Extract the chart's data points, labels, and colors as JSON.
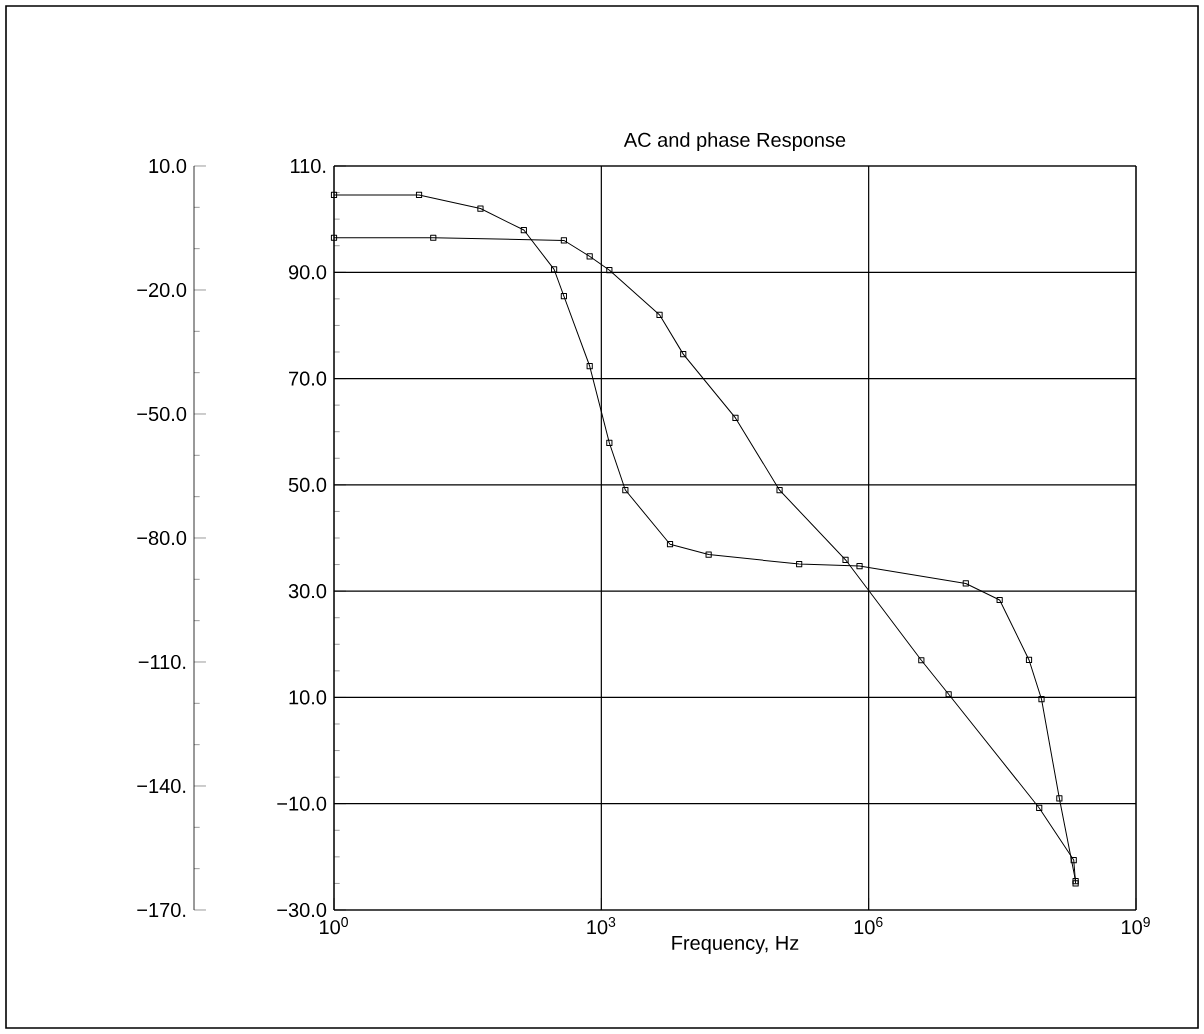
{
  "chart_data": {
    "type": "line",
    "title": "AC and phase Response",
    "xlabel": "Frequency, Hz",
    "log": "x",
    "grid": true,
    "marker": "square",
    "line_style": "solid",
    "xlim": [
      1,
      1000000000
    ],
    "xticks": [
      {
        "value": 1,
        "label": "10$^{0}$"
      },
      {
        "value": 1000,
        "label": "10$^{3}$"
      },
      {
        "value": 1000000,
        "label": "10$^{6}$"
      },
      {
        "value": 1000000000,
        "label": "10$^{9}$"
      }
    ],
    "ylim": [
      -30,
      110
    ],
    "yticks": [
      {
        "value": 110,
        "label": "110."
      },
      {
        "value": 90,
        "label": "90.0"
      },
      {
        "value": 70,
        "label": "70.0"
      },
      {
        "value": 50,
        "label": "50.0"
      },
      {
        "value": 30,
        "label": "30.0"
      },
      {
        "value": 10,
        "label": "10.0"
      },
      {
        "value": -10,
        "label": "−10.0"
      },
      {
        "value": -30,
        "label": "−30.0"
      }
    ],
    "y2lim": [
      -170,
      10
    ],
    "y2ticks": [
      {
        "value": 10,
        "label": "10.0"
      },
      {
        "value": -20,
        "label": "−20.0"
      },
      {
        "value": -50,
        "label": "−50.0"
      },
      {
        "value": -80,
        "label": "−80.0"
      },
      {
        "value": -110,
        "label": "−110."
      },
      {
        "value": -140,
        "label": "−140."
      },
      {
        "value": -170,
        "label": "−170."
      }
    ],
    "series": [
      {
        "color": "#000000",
        "x": [
          1,
          13,
          380,
          740,
          1230,
          4500,
          8300,
          32000,
          100000,
          550000,
          3900000,
          7900000,
          82000000,
          200000000,
          210000000
        ],
        "values": [
          96.5,
          96.5,
          96,
          93,
          90.4,
          82,
          74.6,
          62.6,
          49,
          35.9,
          17,
          10.6,
          -10.8,
          -20.6,
          -25
        ]
      },
      {
        "color": "#000000",
        "axis": "y2",
        "x": [
          1,
          9,
          44,
          135,
          295,
          380,
          740,
          1230,
          1860,
          5900,
          16000,
          166000,
          790000,
          12300000,
          29500000,
          63000000,
          87000000,
          138000000,
          210000000
        ],
        "values": [
          3,
          3,
          -0.3,
          -5.5,
          -15,
          -21.5,
          -38.4,
          -57,
          -68.4,
          -81.5,
          -84,
          -86.3,
          -86.8,
          -91,
          -95,
          -109.5,
          -119,
          -143,
          -163
        ]
      }
    ]
  }
}
